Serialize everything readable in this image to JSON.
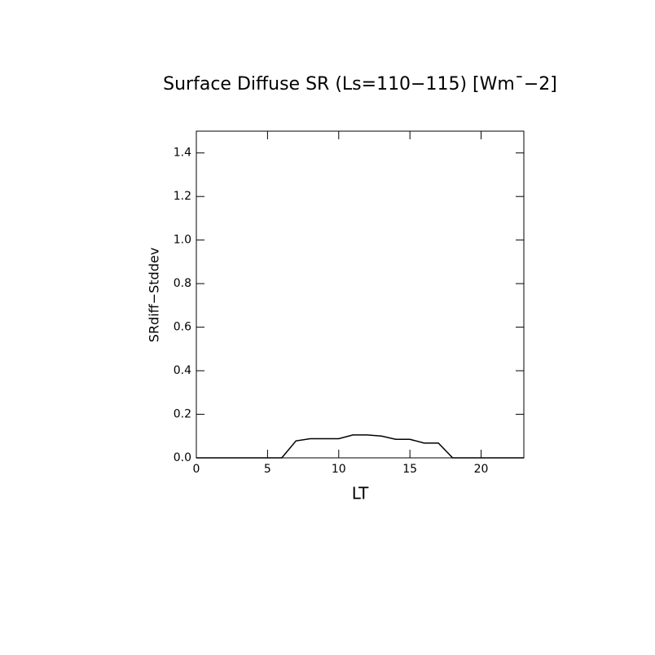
{
  "chart_data": {
    "type": "line",
    "title": "Surface Diffuse SR (Ls=110−115) [Wm¯−2]",
    "x_label": "LT",
    "y_label": "SRdiff−Stddev",
    "x": [
      0,
      1,
      2,
      3,
      4,
      5,
      6,
      7,
      8,
      9,
      10,
      11,
      12,
      13,
      14,
      15,
      16,
      17,
      18,
      19,
      20,
      21,
      22,
      23
    ],
    "values": [
      0,
      0,
      0,
      0,
      0,
      0,
      0,
      0.078,
      0.088,
      0.088,
      0.088,
      0.105,
      0.105,
      0.1,
      0.085,
      0.085,
      0.068,
      0.068,
      0,
      0,
      0,
      0,
      0,
      0
    ],
    "color": "#000000",
    "xlim": [
      0,
      23
    ],
    "xticks": [
      0,
      5,
      10,
      15,
      20
    ],
    "ylim": [
      0,
      1.5
    ],
    "yticks": [
      {
        "value": 0,
        "label": "0.0"
      },
      {
        "value": 0.2,
        "label": "0.2"
      },
      {
        "value": 0.4,
        "label": "0.4"
      },
      {
        "value": 0.6,
        "label": "0.6"
      },
      {
        "value": 0.8,
        "label": "0.8"
      },
      {
        "value": 1.0,
        "label": "1.0"
      },
      {
        "value": 1.2,
        "label": "1.2"
      },
      {
        "value": 1.4,
        "label": "1.4"
      }
    ]
  }
}
